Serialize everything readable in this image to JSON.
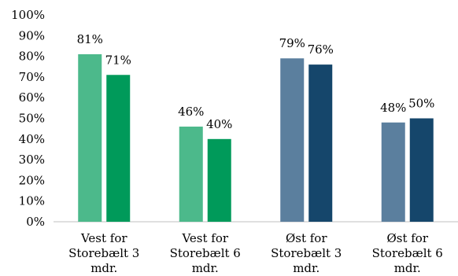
{
  "chart_data": {
    "type": "bar",
    "categories": [
      [
        "Vest for",
        "Storebælt 3",
        "mdr."
      ],
      [
        "Vest for",
        "Storebælt 6",
        "mdr."
      ],
      [
        "Øst for",
        "Storebælt 3",
        "mdr."
      ],
      [
        "Øst for",
        "Storebælt 6",
        "mdr."
      ]
    ],
    "bars": [
      {
        "category": 0,
        "value": 81,
        "label": "81%",
        "color": "#4cb98b"
      },
      {
        "category": 0,
        "value": 71,
        "label": "71%",
        "color": "#009a5a"
      },
      {
        "category": 1,
        "value": 46,
        "label": "46%",
        "color": "#4cb98b"
      },
      {
        "category": 1,
        "value": 40,
        "label": "40%",
        "color": "#009a5a"
      },
      {
        "category": 2,
        "value": 79,
        "label": "79%",
        "color": "#5b7f9e"
      },
      {
        "category": 2,
        "value": 76,
        "label": "76%",
        "color": "#15466b"
      },
      {
        "category": 3,
        "value": 48,
        "label": "48%",
        "color": "#5b7f9e"
      },
      {
        "category": 3,
        "value": 50,
        "label": "50%",
        "color": "#15466b"
      }
    ],
    "yticks": [
      "0%",
      "10%",
      "20%",
      "30%",
      "40%",
      "50%",
      "60%",
      "70%",
      "80%",
      "90%",
      "100%"
    ],
    "ylim": [
      0,
      100
    ],
    "grid": false,
    "legend": "none",
    "title": "",
    "xlabel": "",
    "ylabel": ""
  }
}
